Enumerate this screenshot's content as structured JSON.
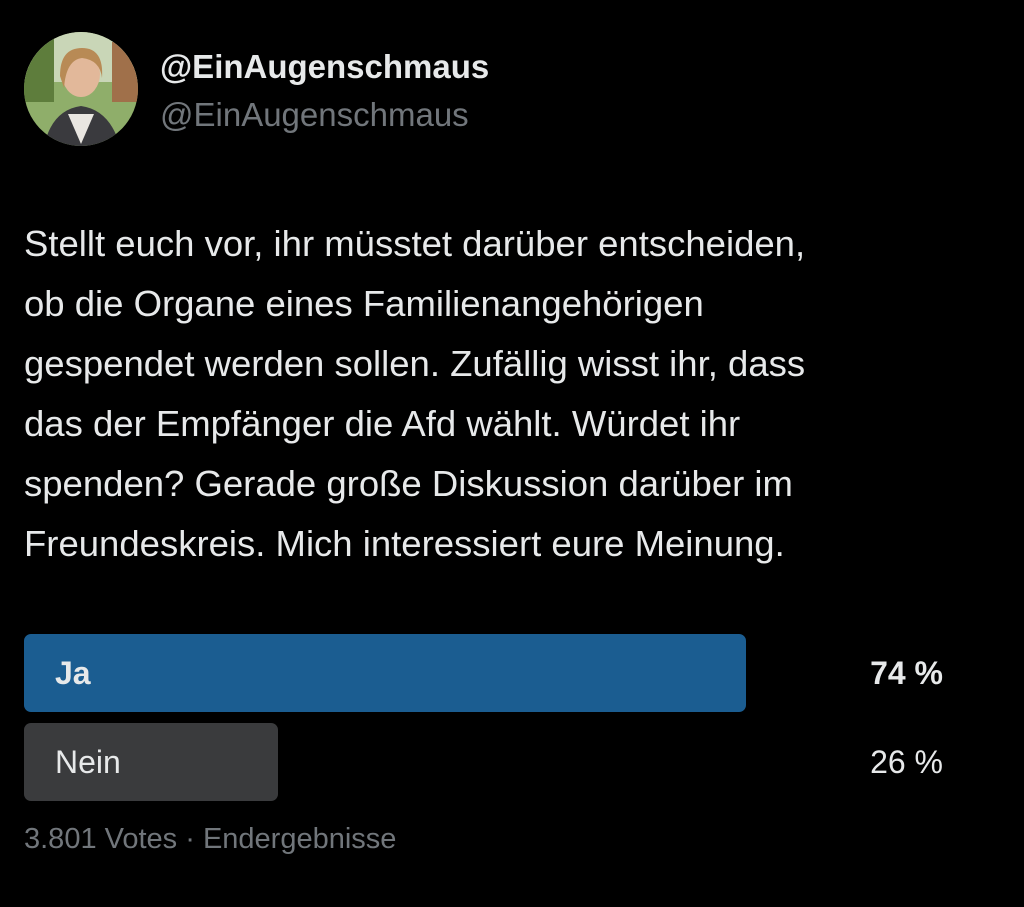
{
  "header": {
    "name": "@EinAugenschmaus",
    "handle": "@EinAugenschmaus"
  },
  "tweet": {
    "lines": [
      "Stellt euch vor, ihr müsstet darüber entscheiden,",
      "ob die Organe eines Familienangehörigen",
      "gespendet werden sollen. Zufällig wisst ihr, dass",
      "das der Empfänger die Afd wählt. Würdet ihr",
      "spenden? Gerade große Diskussion darüber im",
      "Freundeskreis. Mich interessiert eure Meinung."
    ]
  },
  "poll": {
    "options": [
      {
        "label": "Ja",
        "value": 74,
        "value_label": "74 %",
        "color": "#1b5d91"
      },
      {
        "label": "Nein",
        "value": 26,
        "value_label": "26 %",
        "color": "#3a3b3d"
      }
    ],
    "footer": "3.801 Votes · Endergebnisse"
  }
}
